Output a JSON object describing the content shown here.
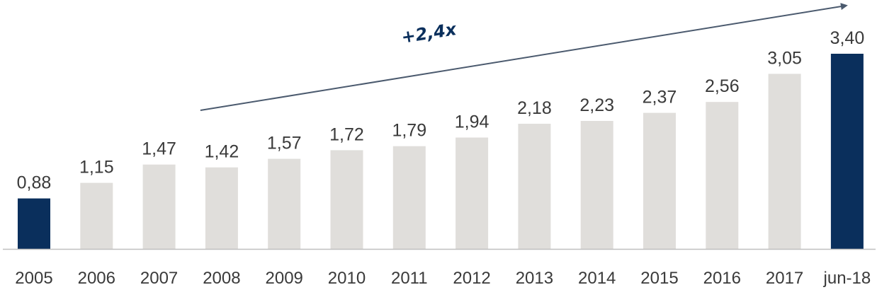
{
  "chart_data": {
    "type": "bar",
    "title": "",
    "xlabel": "",
    "ylabel": "",
    "categories": [
      "2005",
      "2006",
      "2007",
      "2008",
      "2009",
      "2010",
      "2011",
      "2012",
      "2013",
      "2014",
      "2015",
      "2016",
      "2017",
      "jun-18"
    ],
    "values": [
      0.88,
      1.15,
      1.47,
      1.42,
      1.57,
      1.72,
      1.79,
      1.94,
      2.18,
      2.23,
      2.37,
      2.56,
      3.05,
      3.4
    ],
    "value_labels": [
      "0,88",
      "1,15",
      "1,47",
      "1,42",
      "1,57",
      "1,72",
      "1,79",
      "1,94",
      "2,18",
      "2,23",
      "2,37",
      "2,56",
      "3,05",
      "3,40"
    ],
    "highlighted_categories": [
      "2005",
      "jun-18"
    ],
    "ylim": [
      0,
      3.4
    ],
    "grid": false,
    "legend": "none",
    "annotation": {
      "text": "+2,4x",
      "from_category": "2008",
      "to_category": "jun-18"
    },
    "colors": {
      "bar": "#e0dedb",
      "highlight": "#0a2f5c",
      "axis": "#bfbfbf",
      "arrow": "#4b5a6e",
      "text": "#3a3a3a"
    }
  }
}
